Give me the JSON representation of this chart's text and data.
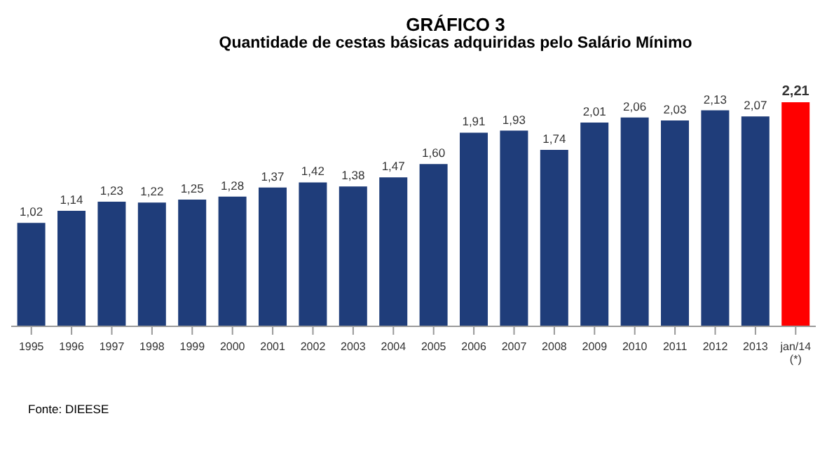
{
  "chart_data": {
    "type": "bar",
    "title": "GRÁFICO 3",
    "subtitle": "Quantidade de cestas básicas adquiridas pelo Salário Mínimo",
    "categories": [
      "1995",
      "1996",
      "1997",
      "1998",
      "1999",
      "2000",
      "2001",
      "2002",
      "2003",
      "2004",
      "2005",
      "2006",
      "2007",
      "2008",
      "2009",
      "2010",
      "2011",
      "2012",
      "2013",
      "jan/14\n(*)"
    ],
    "values": [
      1.02,
      1.14,
      1.23,
      1.22,
      1.25,
      1.28,
      1.37,
      1.42,
      1.38,
      1.47,
      1.6,
      1.91,
      1.93,
      1.74,
      2.01,
      2.06,
      2.03,
      2.13,
      2.07,
      2.21
    ],
    "colors": [
      "#1f3d7a",
      "#1f3d7a",
      "#1f3d7a",
      "#1f3d7a",
      "#1f3d7a",
      "#1f3d7a",
      "#1f3d7a",
      "#1f3d7a",
      "#1f3d7a",
      "#1f3d7a",
      "#1f3d7a",
      "#1f3d7a",
      "#1f3d7a",
      "#1f3d7a",
      "#1f3d7a",
      "#1f3d7a",
      "#1f3d7a",
      "#1f3d7a",
      "#1f3d7a",
      "#ff0000"
    ],
    "value_labels": [
      "1,02",
      "1,14",
      "1,23",
      "1,22",
      "1,25",
      "1,28",
      "1,37",
      "1,42",
      "1,38",
      "1,47",
      "1,60",
      "1,91",
      "1,93",
      "1,74",
      "2,01",
      "2,06",
      "2,03",
      "2,13",
      "2,07",
      "2,21"
    ],
    "annotations": [
      "Fonte: DIEESE"
    ]
  }
}
